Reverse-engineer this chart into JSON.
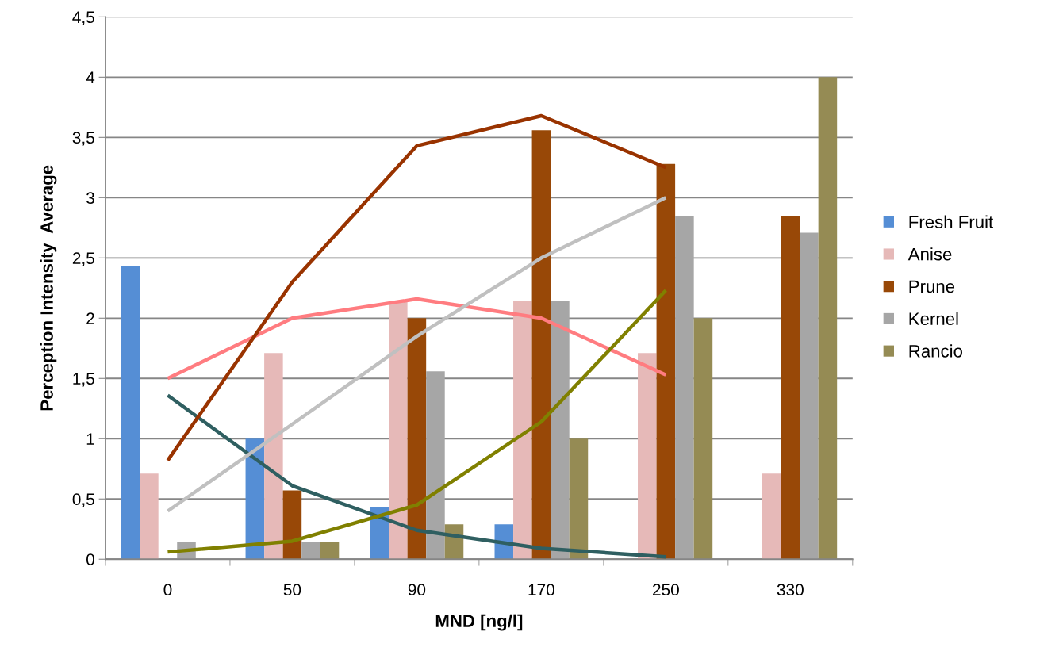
{
  "chart_data": {
    "type": "bar",
    "xlabel": "MND [ng/l]",
    "ylabel": "Perception Intensity  Average",
    "categories": [
      "0",
      "50",
      "90",
      "170",
      "250",
      "330"
    ],
    "ylim": [
      0,
      4.5
    ],
    "yticks": [
      0,
      {
        "value": 0.5,
        "label": "0,5"
      },
      1,
      {
        "value": 1.5,
        "label": "1,5"
      },
      2,
      {
        "value": 2.5,
        "label": "2,5"
      },
      3,
      {
        "value": 3.5,
        "label": "3,5"
      },
      4,
      {
        "value": 4.5,
        "label": "4,5"
      }
    ],
    "grid": "y",
    "legend": "right",
    "series": [
      {
        "name": "Fresh Fruit",
        "color": "#558ed5",
        "values": [
          2.43,
          1.0,
          0.43,
          0.29,
          0,
          0
        ]
      },
      {
        "name": "Anise",
        "color": "#e6b9b8",
        "values": [
          0.71,
          1.71,
          2.14,
          2.14,
          1.71,
          0.71
        ]
      },
      {
        "name": "Prune",
        "color": "#984807",
        "values": [
          0,
          0.57,
          2.0,
          3.56,
          3.28,
          2.85
        ]
      },
      {
        "name": "Kernel",
        "color": "#a6a6a6",
        "values": [
          0.14,
          0.14,
          1.56,
          2.14,
          2.85,
          2.71
        ]
      },
      {
        "name": "Rancio",
        "color": "#958b54",
        "values": [
          0,
          0.14,
          0.29,
          1.0,
          2.0,
          4.0
        ]
      },
      {
        "type": "line",
        "color": "#2f5f61",
        "values": [
          1.36,
          0.61,
          0.24,
          0.09,
          0.02,
          null
        ]
      },
      {
        "type": "line",
        "color": "#ff7c80",
        "values": [
          1.5,
          2.0,
          2.16,
          2.0,
          1.53,
          null
        ]
      },
      {
        "type": "line",
        "color": "#993300",
        "values": [
          0.82,
          2.3,
          3.43,
          3.68,
          3.25,
          null
        ]
      },
      {
        "type": "line",
        "color": "#c0c0c0",
        "values": [
          0.4,
          1.12,
          1.85,
          2.5,
          3.0,
          null
        ]
      },
      {
        "type": "line",
        "color": "#808000",
        "values": [
          0.06,
          0.15,
          0.45,
          1.14,
          2.23,
          null
        ]
      }
    ]
  }
}
